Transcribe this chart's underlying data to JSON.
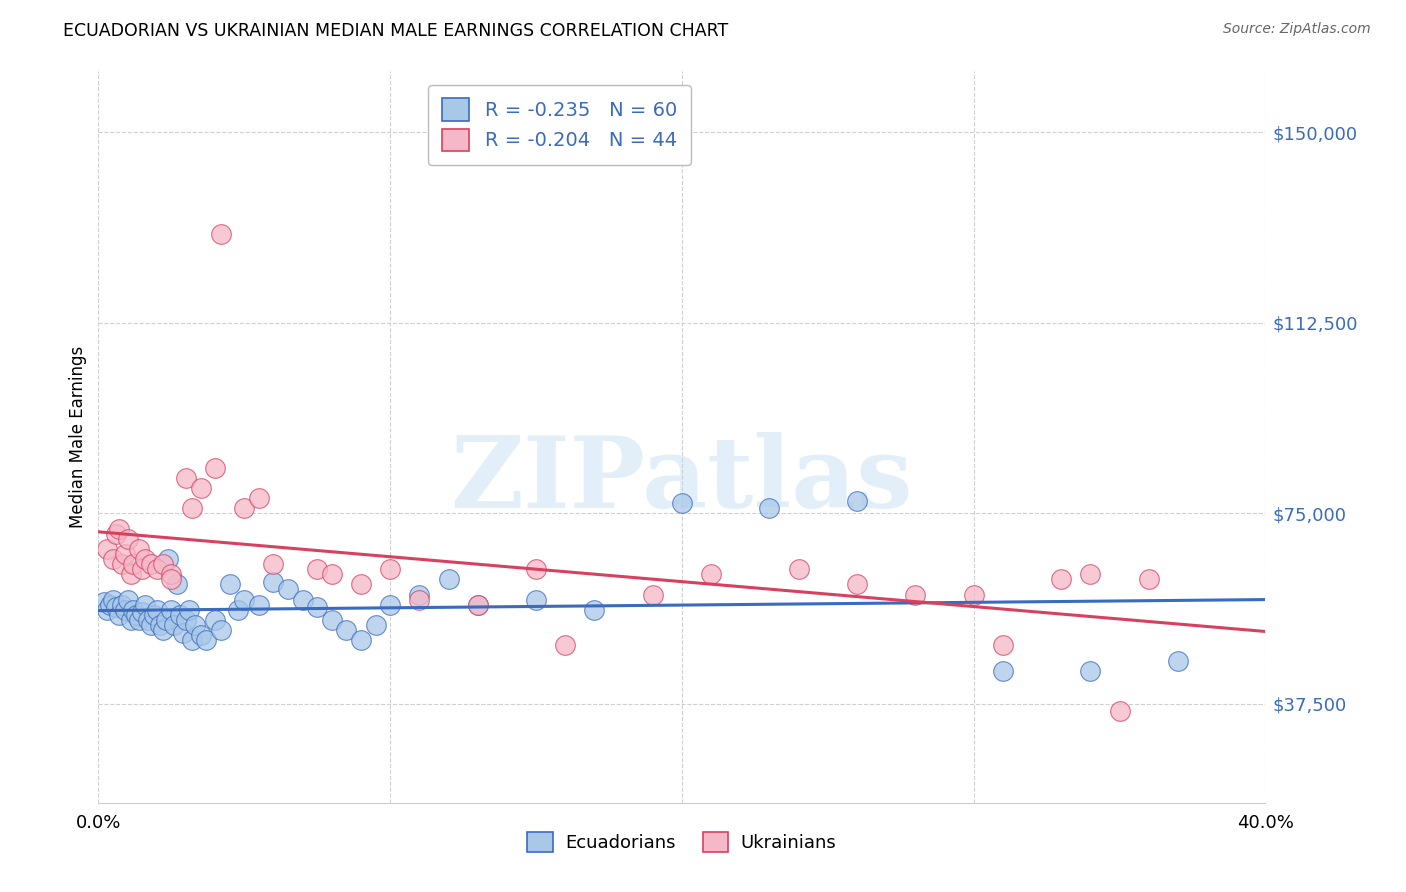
{
  "title": "ECUADORIAN VS UKRAINIAN MEDIAN MALE EARNINGS CORRELATION CHART",
  "source": "Source: ZipAtlas.com",
  "ylabel": "Median Male Earnings",
  "yticks": [
    37500,
    75000,
    112500,
    150000
  ],
  "ytick_labels": [
    "$37,500",
    "$75,000",
    "$112,500",
    "$150,000"
  ],
  "xlim": [
    0.0,
    0.4
  ],
  "ylim": [
    18000,
    162000
  ],
  "ecuadorian_color": "#a8c8e8",
  "ecuadorian_line_color": "#3a6bbf",
  "ecuadorian_edge_color": "#3a6bbf",
  "ukrainian_color": "#f5b8c8",
  "ukrainian_line_color": "#d94060",
  "ukrainian_edge_color": "#d94060",
  "legend_blue_color": "#3a6bbf",
  "R_ecu": -0.235,
  "N_ecu": 60,
  "R_ukr": -0.204,
  "N_ukr": 44,
  "watermark_text": "ZIPatlas",
  "ecuadorian_points": [
    [
      0.002,
      57500
    ],
    [
      0.003,
      56000
    ],
    [
      0.004,
      57000
    ],
    [
      0.005,
      58000
    ],
    [
      0.006,
      56500
    ],
    [
      0.007,
      55000
    ],
    [
      0.008,
      57000
    ],
    [
      0.009,
      56000
    ],
    [
      0.01,
      58000
    ],
    [
      0.011,
      54000
    ],
    [
      0.012,
      56000
    ],
    [
      0.013,
      55000
    ],
    [
      0.014,
      54000
    ],
    [
      0.015,
      55500
    ],
    [
      0.016,
      57000
    ],
    [
      0.017,
      54000
    ],
    [
      0.018,
      53000
    ],
    [
      0.019,
      55000
    ],
    [
      0.02,
      56000
    ],
    [
      0.021,
      53000
    ],
    [
      0.022,
      52000
    ],
    [
      0.023,
      54000
    ],
    [
      0.024,
      66000
    ],
    [
      0.025,
      56000
    ],
    [
      0.026,
      53000
    ],
    [
      0.027,
      61000
    ],
    [
      0.028,
      55000
    ],
    [
      0.029,
      51500
    ],
    [
      0.03,
      54000
    ],
    [
      0.031,
      56000
    ],
    [
      0.032,
      50000
    ],
    [
      0.033,
      53000
    ],
    [
      0.035,
      51000
    ],
    [
      0.037,
      50000
    ],
    [
      0.04,
      54000
    ],
    [
      0.042,
      52000
    ],
    [
      0.045,
      61000
    ],
    [
      0.048,
      56000
    ],
    [
      0.05,
      58000
    ],
    [
      0.055,
      57000
    ],
    [
      0.06,
      61500
    ],
    [
      0.065,
      60000
    ],
    [
      0.07,
      58000
    ],
    [
      0.075,
      56500
    ],
    [
      0.08,
      54000
    ],
    [
      0.085,
      52000
    ],
    [
      0.09,
      50000
    ],
    [
      0.095,
      53000
    ],
    [
      0.1,
      57000
    ],
    [
      0.11,
      59000
    ],
    [
      0.12,
      62000
    ],
    [
      0.13,
      57000
    ],
    [
      0.15,
      58000
    ],
    [
      0.17,
      56000
    ],
    [
      0.2,
      77000
    ],
    [
      0.23,
      76000
    ],
    [
      0.26,
      77500
    ],
    [
      0.31,
      44000
    ],
    [
      0.34,
      44000
    ],
    [
      0.37,
      46000
    ]
  ],
  "ukrainian_points": [
    [
      0.003,
      68000
    ],
    [
      0.005,
      66000
    ],
    [
      0.006,
      71000
    ],
    [
      0.007,
      72000
    ],
    [
      0.008,
      65000
    ],
    [
      0.009,
      67000
    ],
    [
      0.01,
      70000
    ],
    [
      0.011,
      63000
    ],
    [
      0.012,
      65000
    ],
    [
      0.014,
      68000
    ],
    [
      0.015,
      64000
    ],
    [
      0.016,
      66000
    ],
    [
      0.018,
      65000
    ],
    [
      0.02,
      64000
    ],
    [
      0.022,
      65000
    ],
    [
      0.025,
      63000
    ],
    [
      0.03,
      82000
    ],
    [
      0.032,
      76000
    ],
    [
      0.035,
      80000
    ],
    [
      0.04,
      84000
    ],
    [
      0.05,
      76000
    ],
    [
      0.055,
      78000
    ],
    [
      0.06,
      65000
    ],
    [
      0.075,
      64000
    ],
    [
      0.08,
      63000
    ],
    [
      0.09,
      61000
    ],
    [
      0.1,
      64000
    ],
    [
      0.11,
      58000
    ],
    [
      0.13,
      57000
    ],
    [
      0.15,
      64000
    ],
    [
      0.16,
      49000
    ],
    [
      0.19,
      59000
    ],
    [
      0.21,
      63000
    ],
    [
      0.24,
      64000
    ],
    [
      0.26,
      61000
    ],
    [
      0.28,
      59000
    ],
    [
      0.3,
      59000
    ],
    [
      0.31,
      49000
    ],
    [
      0.33,
      62000
    ],
    [
      0.34,
      63000
    ],
    [
      0.35,
      36000
    ],
    [
      0.36,
      62000
    ],
    [
      0.042,
      130000
    ],
    [
      0.025,
      62000
    ]
  ]
}
